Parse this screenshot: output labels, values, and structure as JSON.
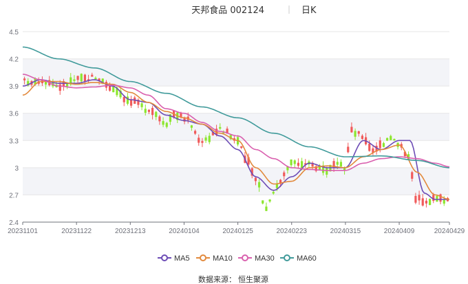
{
  "chart_data": {
    "type": "candlestick",
    "title": "天邦食品 002124",
    "period": "日K",
    "source_label": "数据来源：",
    "source_name": "恒生聚源",
    "ylim": [
      2.4,
      4.5
    ],
    "y_ticks": [
      "4.5",
      "4.2",
      "3.9",
      "3.6",
      "3.3",
      "3",
      "2.7",
      "2.4"
    ],
    "y_tick_values": [
      4.5,
      4.2,
      3.9,
      3.6,
      3.3,
      3.0,
      2.7,
      2.4
    ],
    "x_ticks": [
      "20231101",
      "20231122",
      "20231213",
      "20240104",
      "20240125",
      "20240223",
      "20240315",
      "20240409",
      "20240429"
    ],
    "x_tick_index": [
      0,
      15,
      30,
      45,
      60,
      75,
      90,
      105,
      119
    ],
    "n_points": 120,
    "up_color": "#f05a5a",
    "down_color": "#8ce62e",
    "band_color": "#f3f4f8",
    "series": [
      {
        "name": "MA5",
        "color": "#6c4bb5"
      },
      {
        "name": "MA10",
        "color": "#e2893c"
      },
      {
        "name": "MA30",
        "color": "#d95fae"
      },
      {
        "name": "MA60",
        "color": "#3f9a9a"
      }
    ],
    "ma_anchors": {
      "MA5": [
        [
          0,
          3.9
        ],
        [
          5,
          3.97
        ],
        [
          10,
          3.93
        ],
        [
          15,
          3.93
        ],
        [
          20,
          3.97
        ],
        [
          25,
          3.9
        ],
        [
          30,
          3.75
        ],
        [
          35,
          3.72
        ],
        [
          40,
          3.58
        ],
        [
          45,
          3.52
        ],
        [
          50,
          3.48
        ],
        [
          55,
          3.35
        ],
        [
          60,
          3.2
        ],
        [
          65,
          2.9
        ],
        [
          70,
          2.75
        ],
        [
          75,
          2.9
        ],
        [
          80,
          3.05
        ],
        [
          85,
          3.0
        ],
        [
          90,
          3.0
        ],
        [
          95,
          3.3
        ],
        [
          100,
          3.2
        ],
        [
          105,
          3.3
        ],
        [
          108,
          3.3
        ],
        [
          112,
          2.72
        ],
        [
          115,
          2.65
        ],
        [
          119,
          2.65
        ]
      ],
      "MA10": [
        [
          0,
          3.8
        ],
        [
          5,
          3.95
        ],
        [
          10,
          3.95
        ],
        [
          15,
          3.92
        ],
        [
          20,
          3.94
        ],
        [
          25,
          3.92
        ],
        [
          30,
          3.83
        ],
        [
          35,
          3.72
        ],
        [
          40,
          3.62
        ],
        [
          45,
          3.55
        ],
        [
          50,
          3.48
        ],
        [
          55,
          3.38
        ],
        [
          60,
          3.3
        ],
        [
          65,
          3.0
        ],
        [
          70,
          2.82
        ],
        [
          75,
          2.85
        ],
        [
          80,
          3.0
        ],
        [
          85,
          3.02
        ],
        [
          90,
          3.0
        ],
        [
          95,
          3.12
        ],
        [
          100,
          3.2
        ],
        [
          105,
          3.25
        ],
        [
          110,
          2.95
        ],
        [
          115,
          2.7
        ],
        [
          119,
          2.65
        ]
      ],
      "MA30": [
        [
          0,
          4.03
        ],
        [
          5,
          3.97
        ],
        [
          10,
          3.9
        ],
        [
          15,
          3.88
        ],
        [
          20,
          3.89
        ],
        [
          25,
          3.91
        ],
        [
          30,
          3.88
        ],
        [
          35,
          3.8
        ],
        [
          40,
          3.65
        ],
        [
          45,
          3.6
        ],
        [
          50,
          3.5
        ],
        [
          55,
          3.4
        ],
        [
          60,
          3.35
        ],
        [
          65,
          3.2
        ],
        [
          70,
          3.1
        ],
        [
          75,
          3.0
        ],
        [
          80,
          2.98
        ],
        [
          85,
          2.97
        ],
        [
          90,
          2.97
        ],
        [
          95,
          3.05
        ],
        [
          100,
          3.1
        ],
        [
          105,
          3.12
        ],
        [
          110,
          3.1
        ],
        [
          115,
          3.05
        ],
        [
          119,
          3.01
        ]
      ],
      "MA60": [
        [
          0,
          4.33
        ],
        [
          10,
          4.2
        ],
        [
          20,
          4.1
        ],
        [
          30,
          3.95
        ],
        [
          40,
          3.82
        ],
        [
          50,
          3.67
        ],
        [
          60,
          3.55
        ],
        [
          70,
          3.38
        ],
        [
          80,
          3.23
        ],
        [
          90,
          3.12
        ],
        [
          100,
          3.13
        ],
        [
          110,
          3.08
        ],
        [
          119,
          3.0
        ]
      ]
    },
    "candle_anchors": [
      [
        0,
        3.95
      ],
      [
        5,
        3.97
      ],
      [
        10,
        3.9
      ],
      [
        15,
        3.97
      ],
      [
        20,
        4.0
      ],
      [
        25,
        3.88
      ],
      [
        30,
        3.72
      ],
      [
        35,
        3.65
      ],
      [
        40,
        3.5
      ],
      [
        42,
        3.6
      ],
      [
        45,
        3.55
      ],
      [
        50,
        3.3
      ],
      [
        55,
        3.42
      ],
      [
        60,
        3.3
      ],
      [
        62,
        3.1
      ],
      [
        65,
        2.9
      ],
      [
        68,
        2.55
      ],
      [
        70,
        2.75
      ],
      [
        75,
        3.05
      ],
      [
        80,
        3.03
      ],
      [
        85,
        2.98
      ],
      [
        88,
        3.02
      ],
      [
        90,
        3.0
      ],
      [
        92,
        3.4
      ],
      [
        95,
        3.35
      ],
      [
        98,
        3.2
      ],
      [
        100,
        3.25
      ],
      [
        103,
        3.35
      ],
      [
        105,
        3.25
      ],
      [
        108,
        3.15
      ],
      [
        110,
        2.65
      ],
      [
        115,
        2.65
      ],
      [
        119,
        2.65
      ]
    ]
  }
}
